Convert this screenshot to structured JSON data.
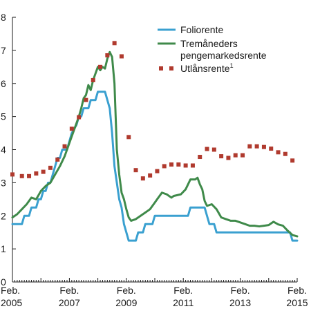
{
  "chart_data": {
    "type": "line",
    "title": "",
    "xlabel": "",
    "ylabel": "",
    "ylim": [
      0,
      8
    ],
    "xlim": [
      "2005-02",
      "2015-02"
    ],
    "y_ticks": [
      "0",
      "1",
      "2",
      "3",
      "4",
      "5",
      "6",
      "7",
      "8"
    ],
    "x_ticks": [
      {
        "date": "2005-02",
        "line1": "Feb.",
        "line2": "2005"
      },
      {
        "date": "2007-02",
        "line1": "Feb.",
        "line2": "2007"
      },
      {
        "date": "2009-02",
        "line1": "Feb.",
        "line2": "2009"
      },
      {
        "date": "2011-02",
        "line1": "Feb.",
        "line2": "2011"
      },
      {
        "date": "2013-02",
        "line1": "Feb.",
        "line2": "2013"
      },
      {
        "date": "2015-02",
        "line1": "Feb.",
        "line2": "2015"
      }
    ],
    "grid": false,
    "legend_position": "top-right",
    "series": [
      {
        "name": "Foliorente",
        "style": "line",
        "color": "#3aa0d0",
        "points": [
          [
            "2005-02",
            1.75
          ],
          [
            "2005-06",
            1.75
          ],
          [
            "2005-07",
            2.0
          ],
          [
            "2005-09",
            2.0
          ],
          [
            "2005-10",
            2.25
          ],
          [
            "2005-12",
            2.25
          ],
          [
            "2006-01",
            2.5
          ],
          [
            "2006-02",
            2.5
          ],
          [
            "2006-03",
            2.75
          ],
          [
            "2006-04",
            2.75
          ],
          [
            "2006-05",
            3.0
          ],
          [
            "2006-06",
            3.0
          ],
          [
            "2006-07",
            3.25
          ],
          [
            "2006-08",
            3.5
          ],
          [
            "2006-09",
            3.75
          ],
          [
            "2006-10",
            3.75
          ],
          [
            "2006-11",
            4.0
          ],
          [
            "2007-01",
            4.0
          ],
          [
            "2007-02",
            4.25
          ],
          [
            "2007-03",
            4.5
          ],
          [
            "2007-05",
            4.75
          ],
          [
            "2007-06",
            5.0
          ],
          [
            "2007-07",
            5.0
          ],
          [
            "2007-08",
            5.25
          ],
          [
            "2007-10",
            5.25
          ],
          [
            "2007-11",
            5.5
          ],
          [
            "2008-01",
            5.5
          ],
          [
            "2008-02",
            5.75
          ],
          [
            "2008-05",
            5.75
          ],
          [
            "2008-06",
            5.5
          ],
          [
            "2008-07",
            5.25
          ],
          [
            "2008-08",
            4.5
          ],
          [
            "2008-09",
            3.5
          ],
          [
            "2008-10",
            3.0
          ],
          [
            "2008-11",
            2.5
          ],
          [
            "2008-12",
            2.25
          ],
          [
            "2009-01",
            1.75
          ],
          [
            "2009-02",
            1.5
          ],
          [
            "2009-03",
            1.25
          ],
          [
            "2009-06",
            1.25
          ],
          [
            "2009-07",
            1.5
          ],
          [
            "2009-09",
            1.5
          ],
          [
            "2009-10",
            1.75
          ],
          [
            "2010-01",
            1.75
          ],
          [
            "2010-02",
            2.0
          ],
          [
            "2011-04",
            2.0
          ],
          [
            "2011-05",
            2.25
          ],
          [
            "2011-11",
            2.25
          ],
          [
            "2011-12",
            2.0
          ],
          [
            "2012-01",
            1.75
          ],
          [
            "2012-03",
            1.75
          ],
          [
            "2012-04",
            1.5
          ],
          [
            "2014-11",
            1.5
          ],
          [
            "2014-12",
            1.25
          ],
          [
            "2015-02",
            1.25
          ]
        ]
      },
      {
        "name": "Tremåneders pengemarkedsrente",
        "style": "line",
        "color": "#3f8a4a",
        "points": [
          [
            "2005-02",
            1.95
          ],
          [
            "2005-04",
            2.05
          ],
          [
            "2005-06",
            2.2
          ],
          [
            "2005-08",
            2.35
          ],
          [
            "2005-10",
            2.55
          ],
          [
            "2005-12",
            2.5
          ],
          [
            "2006-02",
            2.75
          ],
          [
            "2006-04",
            2.9
          ],
          [
            "2006-06",
            3.0
          ],
          [
            "2006-08",
            3.25
          ],
          [
            "2006-10",
            3.5
          ],
          [
            "2006-12",
            3.8
          ],
          [
            "2007-02",
            4.2
          ],
          [
            "2007-04",
            4.6
          ],
          [
            "2007-06",
            5.0
          ],
          [
            "2007-07",
            5.25
          ],
          [
            "2007-08",
            5.55
          ],
          [
            "2007-09",
            5.65
          ],
          [
            "2007-10",
            5.95
          ],
          [
            "2007-11",
            5.8
          ],
          [
            "2007-12",
            6.1
          ],
          [
            "2008-01",
            6.3
          ],
          [
            "2008-02",
            6.5
          ],
          [
            "2008-03",
            6.4
          ],
          [
            "2008-04",
            6.5
          ],
          [
            "2008-05",
            6.45
          ],
          [
            "2008-06",
            6.75
          ],
          [
            "2008-07",
            6.95
          ],
          [
            "2008-08",
            6.8
          ],
          [
            "2008-09",
            6.0
          ],
          [
            "2008-10",
            4.0
          ],
          [
            "2008-11",
            3.25
          ],
          [
            "2008-12",
            2.7
          ],
          [
            "2009-01",
            2.5
          ],
          [
            "2009-02",
            2.2
          ],
          [
            "2009-03",
            1.95
          ],
          [
            "2009-04",
            1.85
          ],
          [
            "2009-06",
            1.9
          ],
          [
            "2009-08",
            2.0
          ],
          [
            "2009-10",
            2.1
          ],
          [
            "2009-12",
            2.2
          ],
          [
            "2010-02",
            2.4
          ],
          [
            "2010-03",
            2.5
          ],
          [
            "2010-04",
            2.6
          ],
          [
            "2010-05",
            2.7
          ],
          [
            "2010-07",
            2.65
          ],
          [
            "2010-09",
            2.55
          ],
          [
            "2010-10",
            2.6
          ],
          [
            "2011-01",
            2.65
          ],
          [
            "2011-03",
            2.8
          ],
          [
            "2011-05",
            3.1
          ],
          [
            "2011-07",
            3.1
          ],
          [
            "2011-08",
            3.15
          ],
          [
            "2011-09",
            2.95
          ],
          [
            "2011-10",
            2.8
          ],
          [
            "2011-11",
            2.45
          ],
          [
            "2011-12",
            2.3
          ],
          [
            "2012-02",
            2.35
          ],
          [
            "2012-04",
            2.2
          ],
          [
            "2012-06",
            1.95
          ],
          [
            "2012-08",
            1.9
          ],
          [
            "2012-10",
            1.85
          ],
          [
            "2012-12",
            1.85
          ],
          [
            "2013-02",
            1.8
          ],
          [
            "2013-04",
            1.75
          ],
          [
            "2013-06",
            1.7
          ],
          [
            "2013-08",
            1.7
          ],
          [
            "2013-10",
            1.68
          ],
          [
            "2013-12",
            1.7
          ],
          [
            "2014-02",
            1.72
          ],
          [
            "2014-04",
            1.82
          ],
          [
            "2014-06",
            1.74
          ],
          [
            "2014-08",
            1.7
          ],
          [
            "2014-10",
            1.55
          ],
          [
            "2014-12",
            1.42
          ],
          [
            "2015-02",
            1.38
          ]
        ]
      },
      {
        "name": "Utlånsrente",
        "name_superscript": "1",
        "style": "markers",
        "color": "#b03a2e",
        "points": [
          [
            "2005-02",
            3.25
          ],
          [
            "2005-06",
            3.2
          ],
          [
            "2005-09",
            3.2
          ],
          [
            "2005-12",
            3.28
          ],
          [
            "2006-03",
            3.33
          ],
          [
            "2006-06",
            3.45
          ],
          [
            "2006-09",
            3.7
          ],
          [
            "2006-12",
            4.1
          ],
          [
            "2007-03",
            4.63
          ],
          [
            "2007-06",
            4.98
          ],
          [
            "2007-09",
            5.5
          ],
          [
            "2007-12",
            6.1
          ],
          [
            "2008-03",
            6.5
          ],
          [
            "2008-06",
            6.85
          ],
          [
            "2008-09",
            7.22
          ],
          [
            "2008-12",
            6.82
          ],
          [
            "2009-03",
            4.38
          ],
          [
            "2009-06",
            3.38
          ],
          [
            "2009-09",
            3.13
          ],
          [
            "2009-12",
            3.22
          ],
          [
            "2010-03",
            3.35
          ],
          [
            "2010-06",
            3.5
          ],
          [
            "2010-09",
            3.55
          ],
          [
            "2010-12",
            3.55
          ],
          [
            "2011-03",
            3.52
          ],
          [
            "2011-06",
            3.52
          ],
          [
            "2011-09",
            3.78
          ],
          [
            "2011-12",
            4.02
          ],
          [
            "2012-03",
            4.0
          ],
          [
            "2012-06",
            3.8
          ],
          [
            "2012-09",
            3.75
          ],
          [
            "2012-12",
            3.83
          ],
          [
            "2013-03",
            3.83
          ],
          [
            "2013-06",
            4.1
          ],
          [
            "2013-09",
            4.1
          ],
          [
            "2013-12",
            4.08
          ],
          [
            "2014-03",
            4.03
          ],
          [
            "2014-06",
            3.92
          ],
          [
            "2014-09",
            3.87
          ],
          [
            "2014-12",
            3.67
          ]
        ]
      }
    ]
  }
}
